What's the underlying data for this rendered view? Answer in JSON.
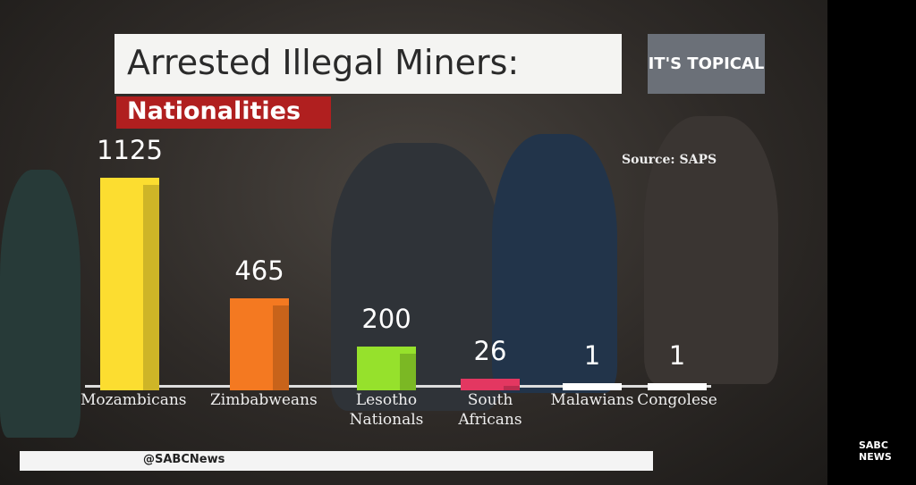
{
  "chart_data": {
    "type": "bar",
    "title": "Arrested Illegal Miners:",
    "subtitle": "Nationalities",
    "source": "Source: SAPS",
    "categories": [
      "Mozambicans",
      "Zimbabweans",
      "Lesotho Nationals",
      "South Africans",
      "Malawians",
      "Congolese"
    ],
    "values": [
      1125,
      465,
      200,
      26,
      1,
      1
    ],
    "colors": [
      "#f0d22e",
      "#e8731f",
      "#8fd62a",
      "#d8345c",
      "#f4f4f4",
      "#f4f4f4"
    ]
  },
  "branding": {
    "show": "IT'S TOPICAL",
    "handle": "@SABCNews",
    "channel": "SABC NEWS"
  }
}
